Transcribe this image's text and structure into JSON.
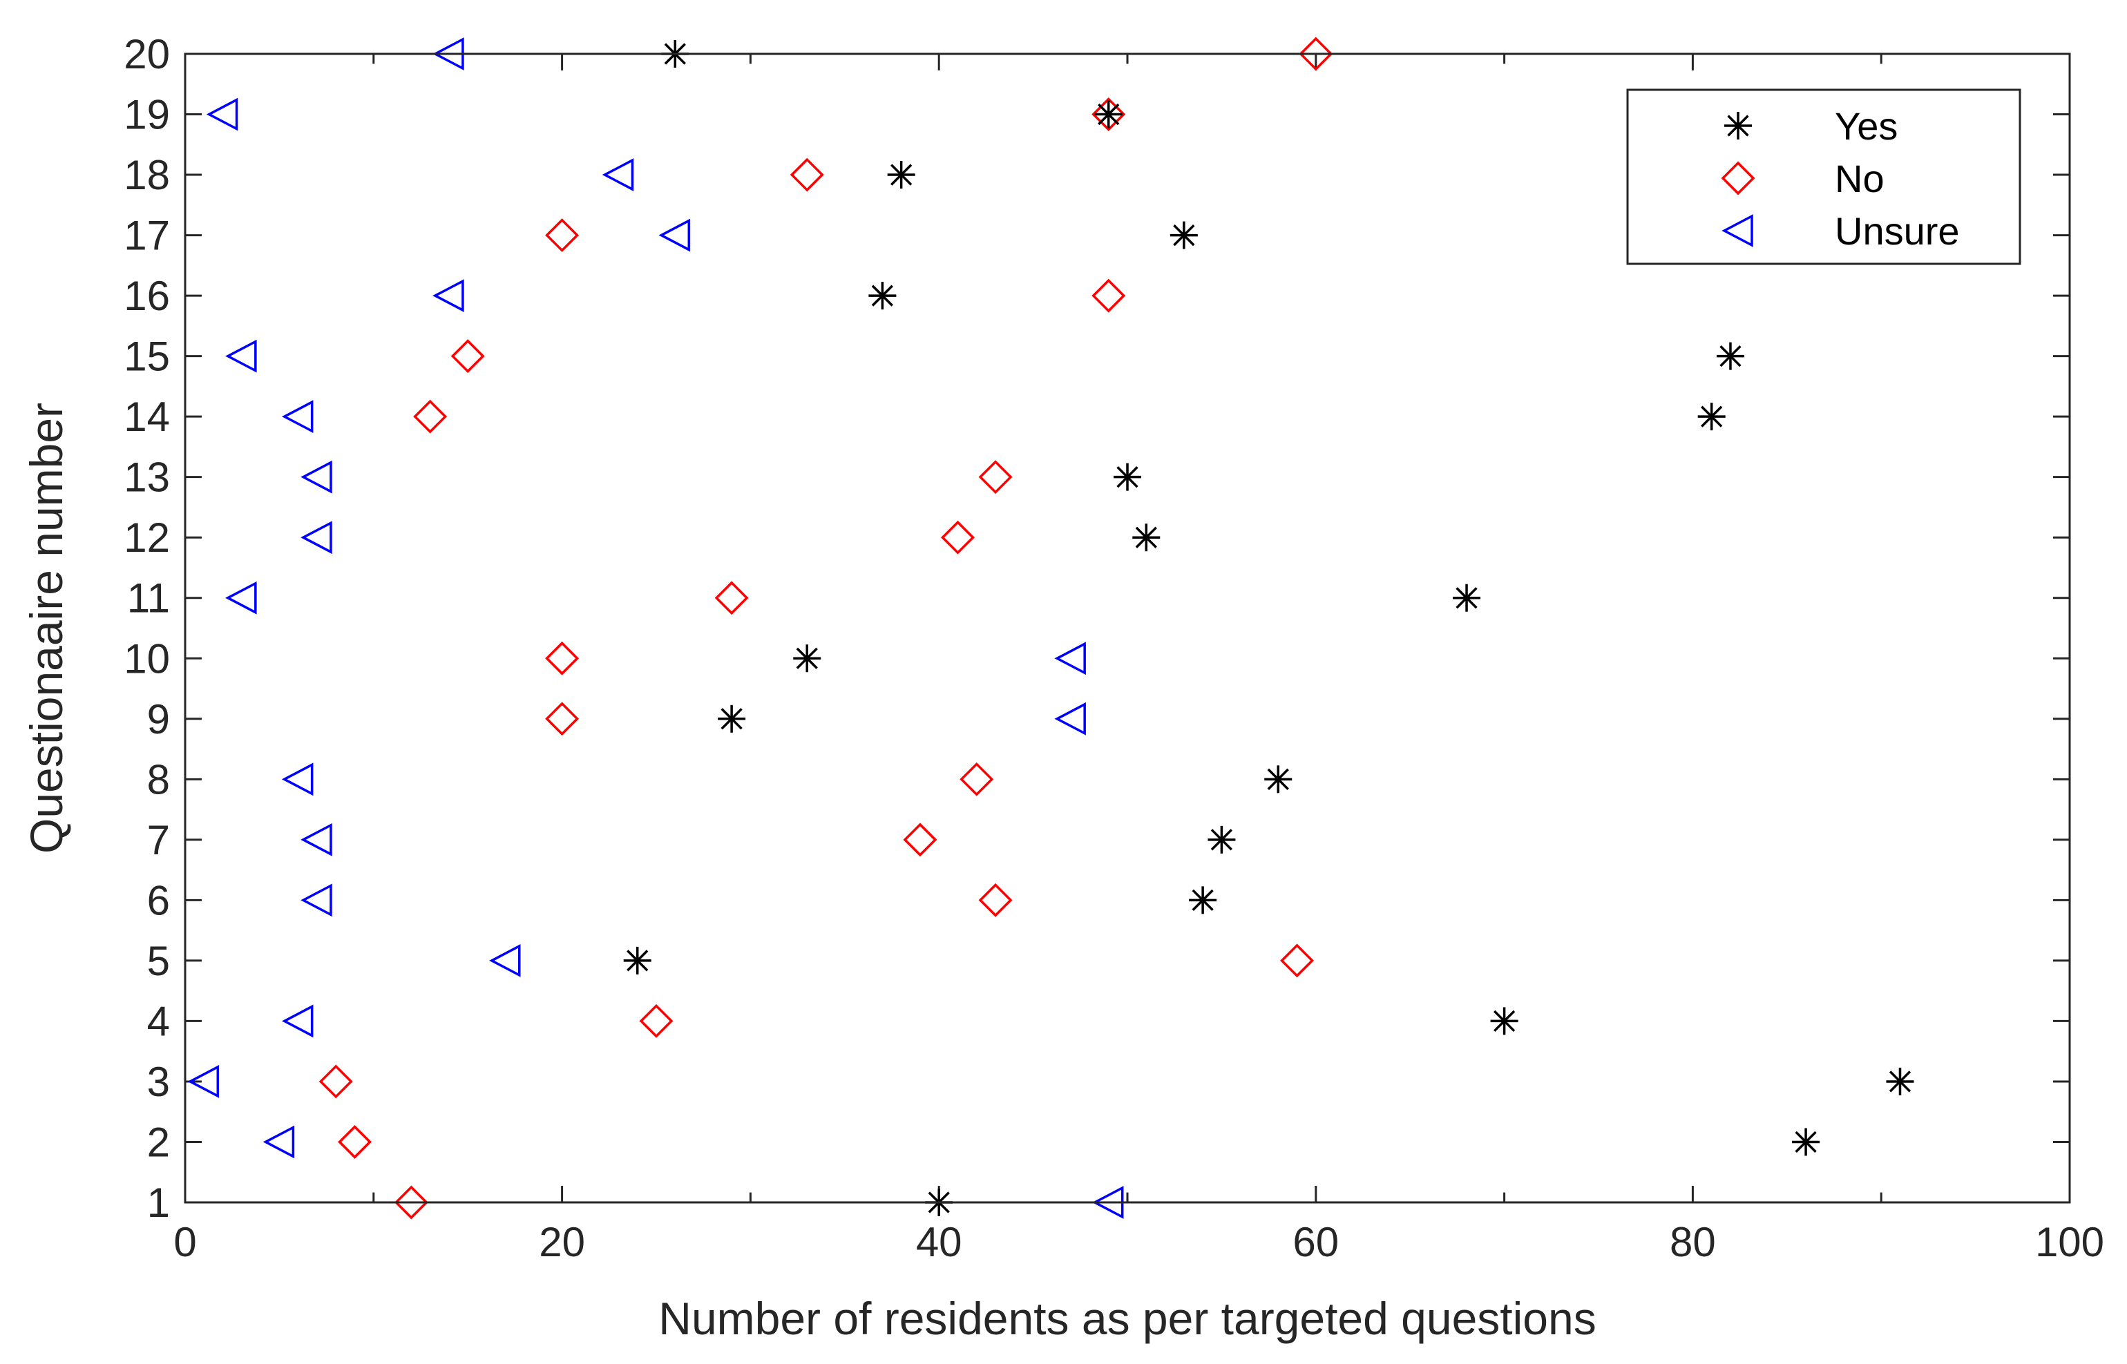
{
  "chart_data": {
    "type": "scatter",
    "title": "",
    "xlabel": "Number of residents as per targeted questions",
    "ylabel": "Questionaaire number",
    "xlim": [
      0,
      100
    ],
    "ylim": [
      1,
      20
    ],
    "xticks": [
      0,
      20,
      40,
      60,
      80,
      100
    ],
    "yticks": [
      1,
      2,
      3,
      4,
      5,
      6,
      7,
      8,
      9,
      10,
      11,
      12,
      13,
      14,
      15,
      16,
      17,
      18,
      19,
      20
    ],
    "grid": false,
    "legend_position": "top-right",
    "colors": {
      "axis": "#262626",
      "yes": "#000000",
      "no": "#ff0000",
      "unsure": "#0000ff"
    },
    "series": [
      {
        "name": "Yes",
        "marker": "asterisk",
        "points": [
          {
            "x": 40,
            "y": 1
          },
          {
            "x": 86,
            "y": 2
          },
          {
            "x": 91,
            "y": 3
          },
          {
            "x": 70,
            "y": 4
          },
          {
            "x": 24,
            "y": 5
          },
          {
            "x": 54,
            "y": 6
          },
          {
            "x": 55,
            "y": 7
          },
          {
            "x": 58,
            "y": 8
          },
          {
            "x": 29,
            "y": 9
          },
          {
            "x": 33,
            "y": 10
          },
          {
            "x": 68,
            "y": 11
          },
          {
            "x": 51,
            "y": 12
          },
          {
            "x": 50,
            "y": 13
          },
          {
            "x": 81,
            "y": 14
          },
          {
            "x": 82,
            "y": 15
          },
          {
            "x": 37,
            "y": 16
          },
          {
            "x": 53,
            "y": 17
          },
          {
            "x": 38,
            "y": 18
          },
          {
            "x": 49,
            "y": 19
          },
          {
            "x": 26,
            "y": 20
          }
        ]
      },
      {
        "name": "No",
        "marker": "diamond",
        "points": [
          {
            "x": 12,
            "y": 1
          },
          {
            "x": 9,
            "y": 2
          },
          {
            "x": 8,
            "y": 3
          },
          {
            "x": 25,
            "y": 4
          },
          {
            "x": 59,
            "y": 5
          },
          {
            "x": 43,
            "y": 6
          },
          {
            "x": 39,
            "y": 7
          },
          {
            "x": 42,
            "y": 8
          },
          {
            "x": 20,
            "y": 9
          },
          {
            "x": 20,
            "y": 10
          },
          {
            "x": 29,
            "y": 11
          },
          {
            "x": 41,
            "y": 12
          },
          {
            "x": 43,
            "y": 13
          },
          {
            "x": 13,
            "y": 14
          },
          {
            "x": 15,
            "y": 15
          },
          {
            "x": 49,
            "y": 16
          },
          {
            "x": 20,
            "y": 17
          },
          {
            "x": 33,
            "y": 18
          },
          {
            "x": 49,
            "y": 19
          },
          {
            "x": 60,
            "y": 20
          }
        ]
      },
      {
        "name": "Unsure",
        "marker": "triangle-left",
        "points": [
          {
            "x": 49,
            "y": 1
          },
          {
            "x": 5,
            "y": 2
          },
          {
            "x": 1,
            "y": 3
          },
          {
            "x": 6,
            "y": 4
          },
          {
            "x": 17,
            "y": 5
          },
          {
            "x": 7,
            "y": 6
          },
          {
            "x": 7,
            "y": 7
          },
          {
            "x": 6,
            "y": 8
          },
          {
            "x": 47,
            "y": 9
          },
          {
            "x": 47,
            "y": 10
          },
          {
            "x": 3,
            "y": 11
          },
          {
            "x": 7,
            "y": 12
          },
          {
            "x": 7,
            "y": 13
          },
          {
            "x": 6,
            "y": 14
          },
          {
            "x": 3,
            "y": 15
          },
          {
            "x": 14,
            "y": 16
          },
          {
            "x": 26,
            "y": 17
          },
          {
            "x": 23,
            "y": 18
          },
          {
            "x": 2,
            "y": 19
          },
          {
            "x": 14,
            "y": 20
          }
        ]
      }
    ]
  }
}
